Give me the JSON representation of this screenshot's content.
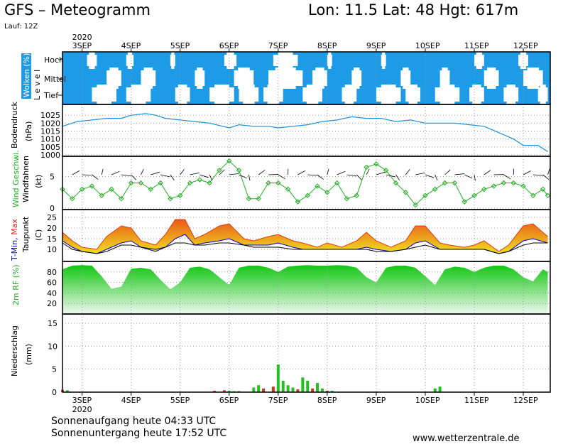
{
  "header": {
    "title": "GFS – Meteogramm",
    "location": "Lon: 11.5 Lat: 48 Hgt: 617m",
    "run": "Lauf: 12Z"
  },
  "footer": {
    "sunrise": "Sonnenaufgang heute 04:33 UTC",
    "sunset": "Sonnenuntergang heute 17:52 UTC",
    "url": "www.wetterzentrale.de"
  },
  "axis": {
    "year": "2020",
    "days": [
      "3SEP",
      "4SEP",
      "5SEP",
      "6SEP",
      "7SEP",
      "8SEP",
      "9SEP",
      "10SEP",
      "11SEP",
      "12SEP"
    ]
  },
  "chart_data": [
    {
      "type": "heatmap",
      "panel": "clouds",
      "ylabel": "Wolken (%)",
      "ylabel2": "L e v e l",
      "levels": [
        "Hoch",
        "Mittel",
        "Tief"
      ],
      "note": "cloud cover by level, blue=cloud, white=clear; approximate",
      "clear_high": [
        [
          3.1,
          3.3
        ],
        [
          3.9,
          4.05
        ],
        [
          4.8,
          4.9
        ],
        [
          5.9,
          6.15
        ],
        [
          6.9,
          7.4
        ],
        [
          8.0,
          8.1
        ],
        [
          9.1,
          9.2
        ],
        [
          11.0,
          11.2
        ],
        [
          11.9,
          12.1
        ]
      ],
      "clear_mid": [
        [
          3.5,
          3.8
        ],
        [
          4.2,
          4.5
        ],
        [
          5.3,
          5.5
        ],
        [
          6.1,
          6.5
        ],
        [
          6.8,
          7.5
        ],
        [
          7.7,
          8.0
        ],
        [
          8.5,
          8.7
        ],
        [
          9.5,
          9.7
        ],
        [
          10.3,
          10.5
        ],
        [
          11.2,
          11.5
        ],
        [
          12.0,
          12.4
        ]
      ],
      "clear_low": [
        [
          3.2,
          3.7
        ],
        [
          3.9,
          4.4
        ],
        [
          4.9,
          5.2
        ],
        [
          5.6,
          6.1
        ],
        [
          6.2,
          6.6
        ],
        [
          6.7,
          7.1
        ],
        [
          7.5,
          7.9
        ],
        [
          8.3,
          8.6
        ],
        [
          9.0,
          9.5
        ],
        [
          9.6,
          9.9
        ],
        [
          10.2,
          10.7
        ],
        [
          10.9,
          11.2
        ],
        [
          11.6,
          11.9
        ],
        [
          12.3,
          12.5
        ]
      ]
    },
    {
      "type": "line",
      "panel": "pressure",
      "ylabel": "Bodendruck (hPa)",
      "ylim": [
        1000,
        1030
      ],
      "yticks": [
        1000,
        1005,
        1010,
        1015,
        1020,
        1025
      ],
      "series": [
        {
          "x": [
            2.6,
            2.9,
            3.2,
            3.5,
            3.8,
            4.0,
            4.3,
            4.5,
            4.7,
            5.0,
            5.3,
            5.6,
            6.0,
            6.2,
            6.5,
            6.8,
            7.0,
            7.3,
            7.6,
            7.9,
            8.2,
            8.5,
            8.8,
            9.1,
            9.4,
            9.7,
            10.0,
            10.3,
            10.6,
            10.9,
            11.2,
            11.5,
            11.8,
            12.0,
            12.3,
            12.5
          ],
          "values": [
            1018,
            1021,
            1022,
            1023,
            1023,
            1025,
            1026,
            1025,
            1023,
            1022,
            1021,
            1020,
            1017,
            1019,
            1018,
            1018,
            1017,
            1018,
            1019,
            1021,
            1022,
            1024,
            1023,
            1023,
            1021,
            1022,
            1020,
            1020,
            1020,
            1019,
            1018,
            1014,
            1010,
            1006,
            1006,
            1002
          ]
        }
      ]
    },
    {
      "type": "line",
      "panel": "wind",
      "ylabel": "Wind Geschwi. Windfahnen (kt)",
      "ylim": [
        0,
        8
      ],
      "yticks": [
        0,
        5
      ],
      "series": [
        {
          "x": [
            2.6,
            2.8,
            3.0,
            3.2,
            3.4,
            3.6,
            3.8,
            4.0,
            4.2,
            4.4,
            4.6,
            4.8,
            5.0,
            5.2,
            5.4,
            5.6,
            5.8,
            6.0,
            6.2,
            6.4,
            6.6,
            6.8,
            7.0,
            7.2,
            7.4,
            7.6,
            7.8,
            8.0,
            8.2,
            8.4,
            8.6,
            8.8,
            9.0,
            9.2,
            9.4,
            9.6,
            9.8,
            10.0,
            10.2,
            10.4,
            10.6,
            10.8,
            11.0,
            11.2,
            11.4,
            11.6,
            11.8,
            12.0,
            12.2,
            12.4,
            12.5
          ],
          "values": [
            3,
            1.5,
            3,
            3.5,
            2,
            3,
            1.5,
            4,
            4,
            3,
            4,
            1.5,
            2,
            4,
            4.5,
            4,
            6,
            7.5,
            6,
            1.5,
            1.5,
            4,
            4,
            3,
            1,
            2,
            3.5,
            2.5,
            4,
            1.5,
            2,
            6.5,
            7,
            6,
            4,
            2.5,
            0.5,
            2,
            3,
            4,
            4,
            1,
            2,
            3,
            3.5,
            4,
            4,
            3.5,
            2,
            3,
            2
          ]
        }
      ]
    },
    {
      "type": "line",
      "panel": "temperature",
      "ylabel": "T-Min, Max Taupunkt (C)",
      "series_labels_colored": [
        "T-Min",
        "Max"
      ],
      "ylim": [
        5,
        28
      ],
      "yticks": [
        10,
        15,
        20,
        25
      ],
      "series": [
        {
          "name": "T-Max",
          "color": "#e03a10",
          "x": [
            2.6,
            2.8,
            3.0,
            3.3,
            3.5,
            3.8,
            4.0,
            4.2,
            4.5,
            4.7,
            4.9,
            5.1,
            5.3,
            5.5,
            5.8,
            6.0,
            6.3,
            6.5,
            6.8,
            7.0,
            7.3,
            7.5,
            7.8,
            8.0,
            8.3,
            8.6,
            8.8,
            9.0,
            9.3,
            9.6,
            9.8,
            10.0,
            10.3,
            10.5,
            10.8,
            11.0,
            11.2,
            11.5,
            11.7,
            12.0,
            12.2,
            12.5
          ],
          "values": [
            18,
            14,
            11,
            10,
            16,
            21,
            20,
            14,
            12,
            17,
            24,
            24,
            15,
            17,
            21,
            22,
            15,
            14,
            16,
            17,
            14,
            13,
            11,
            13,
            11,
            14,
            18,
            14,
            11,
            14,
            21,
            21,
            13,
            12,
            11,
            12,
            14,
            9,
            12,
            21,
            22,
            16
          ]
        },
        {
          "name": "T-Min",
          "color": "#0000cc",
          "x": [
            2.6,
            2.8,
            3.0,
            3.3,
            3.5,
            3.8,
            4.0,
            4.2,
            4.5,
            4.7,
            4.9,
            5.1,
            5.3,
            5.5,
            5.8,
            6.0,
            6.3,
            6.5,
            6.8,
            7.0,
            7.3,
            7.5,
            7.8,
            8.0,
            8.3,
            8.6,
            8.8,
            9.0,
            9.3,
            9.6,
            9.8,
            10.0,
            10.3,
            10.5,
            10.8,
            11.0,
            11.2,
            11.5,
            11.7,
            12.0,
            12.2,
            12.5
          ],
          "values": [
            14,
            11,
            9,
            8,
            10,
            13,
            14,
            11,
            9,
            11,
            15,
            17,
            12,
            13,
            14,
            15,
            12,
            12,
            12,
            13,
            11,
            10,
            10,
            10,
            10,
            10,
            11,
            10,
            9,
            10,
            13,
            14,
            10,
            10,
            10,
            10,
            10,
            8,
            9,
            14,
            15,
            13
          ]
        },
        {
          "name": "Taupunkt",
          "color": "#000000",
          "x": [
            2.6,
            2.8,
            3.0,
            3.3,
            3.5,
            3.8,
            4.0,
            4.2,
            4.5,
            4.7,
            4.9,
            5.1,
            5.3,
            5.5,
            5.8,
            6.0,
            6.3,
            6.5,
            6.8,
            7.0,
            7.3,
            7.5,
            7.8,
            8.0,
            8.3,
            8.6,
            8.8,
            9.0,
            9.3,
            9.6,
            9.8,
            10.0,
            10.3,
            10.5,
            10.8,
            11.0,
            11.2,
            11.5,
            11.7,
            12.0,
            12.2,
            12.5
          ],
          "values": [
            13,
            10,
            9,
            8,
            9,
            12,
            12,
            11,
            10,
            11,
            13,
            13,
            12,
            12,
            13,
            13,
            12,
            11,
            11,
            11,
            10,
            10,
            10,
            10,
            10,
            10,
            10,
            9,
            9,
            10,
            11,
            12,
            10,
            10,
            10,
            10,
            10,
            8,
            9,
            12,
            13,
            13
          ]
        }
      ]
    },
    {
      "type": "area",
      "panel": "humidity",
      "ylabel": "2m RF (%)",
      "ylim": [
        0,
        100
      ],
      "yticks": [
        20,
        40,
        60,
        80
      ],
      "series": [
        {
          "x": [
            2.6,
            2.8,
            3.0,
            3.2,
            3.4,
            3.6,
            3.8,
            4.0,
            4.2,
            4.4,
            4.6,
            4.8,
            5.0,
            5.2,
            5.4,
            5.6,
            5.8,
            6.0,
            6.2,
            6.4,
            6.6,
            6.8,
            7.0,
            7.2,
            7.4,
            7.6,
            7.8,
            8.0,
            8.2,
            8.4,
            8.6,
            8.8,
            9.0,
            9.2,
            9.4,
            9.6,
            9.8,
            10.0,
            10.2,
            10.4,
            10.6,
            10.8,
            11.0,
            11.2,
            11.4,
            11.6,
            11.8,
            12.0,
            12.2,
            12.4,
            12.5
          ],
          "values": [
            85,
            92,
            93,
            92,
            72,
            48,
            52,
            86,
            88,
            85,
            65,
            47,
            60,
            88,
            90,
            85,
            70,
            55,
            88,
            92,
            92,
            88,
            80,
            90,
            92,
            93,
            92,
            92,
            93,
            92,
            88,
            70,
            60,
            88,
            92,
            92,
            88,
            72,
            55,
            85,
            90,
            88,
            80,
            88,
            92,
            92,
            85,
            70,
            62,
            85,
            80
          ]
        }
      ]
    },
    {
      "type": "bar",
      "panel": "precipitation",
      "ylabel": "Niederschlag (mm)",
      "ylim": [
        0,
        17
      ],
      "yticks": [
        0,
        5,
        10,
        15
      ],
      "series": [
        {
          "name": "green",
          "color": "#22c022",
          "x": [
            2.7,
            6.0,
            6.1,
            6.5,
            6.6,
            7.0,
            7.1,
            7.2,
            7.3,
            7.5,
            7.6,
            7.8,
            7.9,
            8.1,
            10.2,
            10.3
          ],
          "values": [
            0.4,
            0.3,
            0.2,
            1.0,
            1.5,
            6.0,
            2.5,
            1.5,
            1.0,
            3.2,
            2.5,
            2.0,
            0.8,
            0.3,
            0.8,
            1.2
          ]
        },
        {
          "name": "red",
          "color": "#c83c1a",
          "x": [
            2.6,
            5.7,
            5.9,
            6.2,
            6.7,
            6.9,
            7.4,
            7.7,
            8.0
          ],
          "values": [
            0.5,
            0.3,
            0.4,
            0.2,
            0.8,
            1.2,
            0.6,
            0.8,
            0.3
          ]
        }
      ]
    }
  ]
}
